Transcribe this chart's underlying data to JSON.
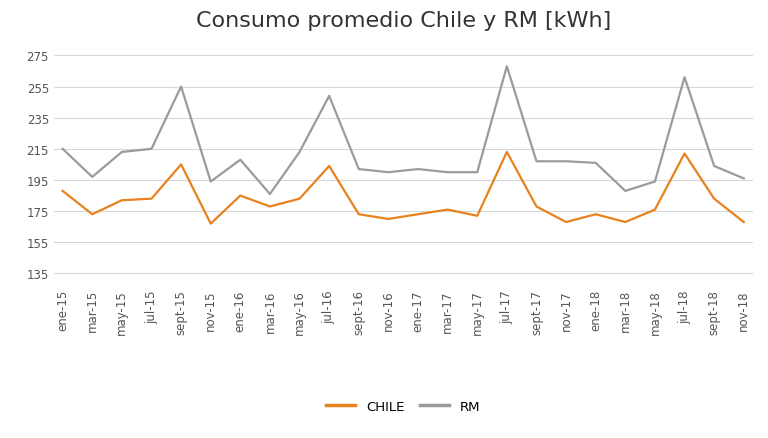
{
  "title": "Consumo promedio Chile y RM [kWh]",
  "x_labels": [
    "ene-15",
    "mar-15",
    "may-15",
    "jul-15",
    "sept-15",
    "nov-15",
    "ene-16",
    "mar-16",
    "may-16",
    "jul-16",
    "sept-16",
    "nov-16",
    "ene-17",
    "mar-17",
    "may-17",
    "jul-17",
    "sept-17",
    "nov-17",
    "ene-18",
    "mar-18",
    "may-18",
    "jul-18",
    "sept-18",
    "nov-18"
  ],
  "chile": [
    188,
    173,
    182,
    183,
    205,
    167,
    185,
    178,
    183,
    204,
    173,
    170,
    173,
    176,
    172,
    213,
    178,
    168,
    173,
    168,
    176,
    212,
    183,
    168
  ],
  "rm": [
    215,
    197,
    213,
    215,
    255,
    194,
    208,
    186,
    213,
    249,
    202,
    200,
    202,
    200,
    200,
    268,
    207,
    207,
    206,
    188,
    194,
    261,
    204,
    196
  ],
  "chile_color": "#E8821E",
  "rm_color": "#9B9B9B",
  "background_color": "#FFFFFF",
  "yticks": [
    135,
    155,
    175,
    195,
    215,
    235,
    255,
    275
  ],
  "ylim": [
    128,
    283
  ],
  "legend_chile": "CHILE",
  "legend_rm": "RM",
  "title_fontsize": 16,
  "tick_fontsize": 8.5,
  "legend_fontsize": 9.5,
  "line_width": 1.6
}
